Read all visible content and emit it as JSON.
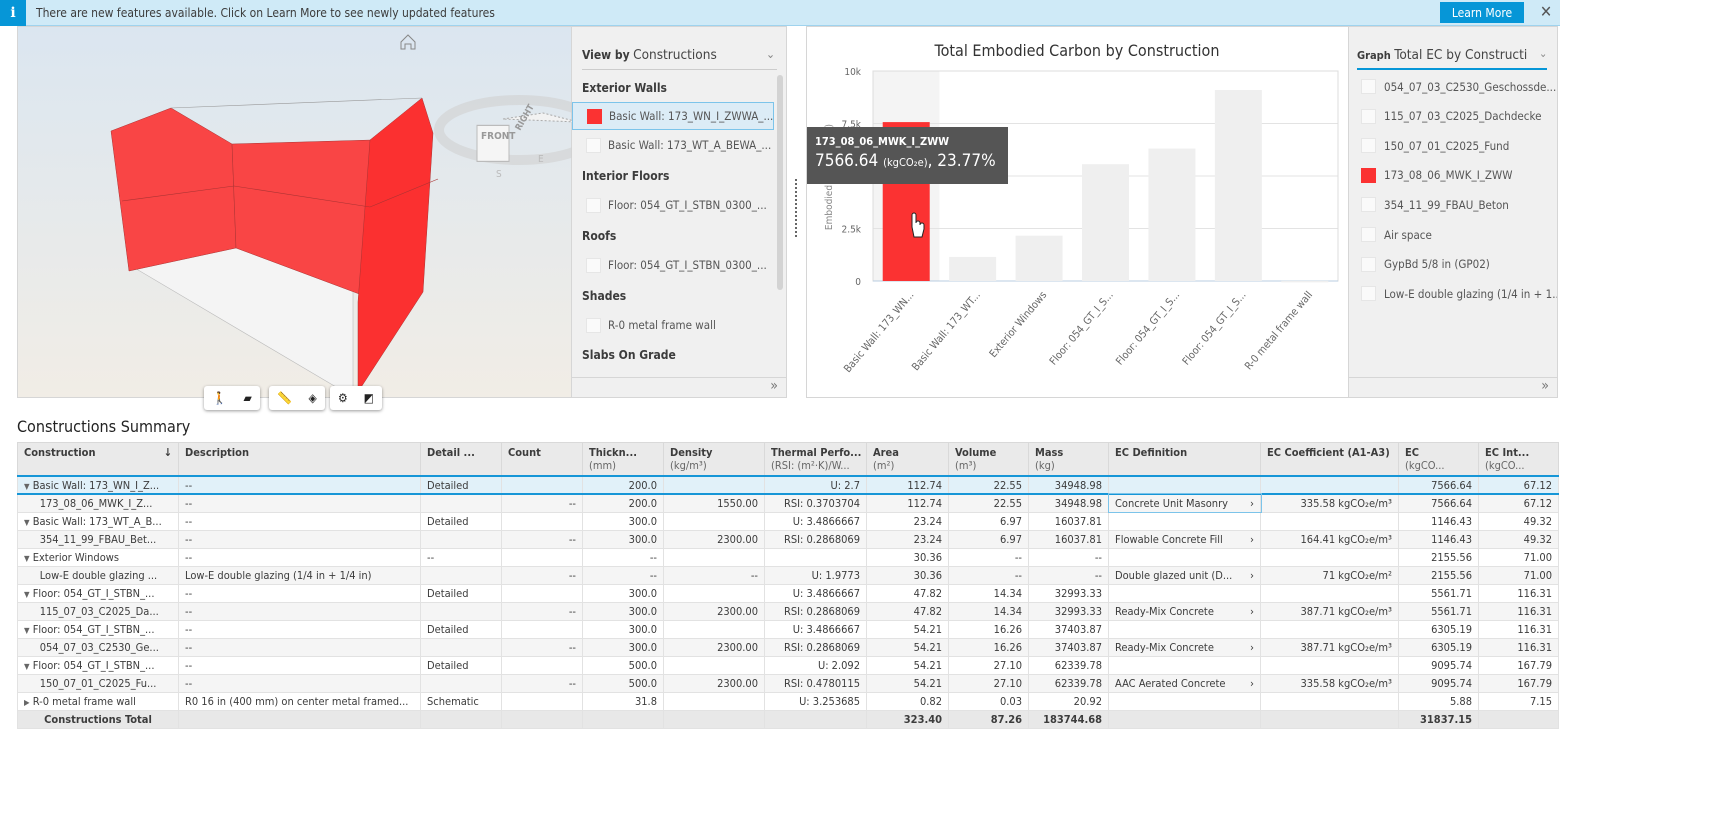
{
  "banner": {
    "text": "There are new features available. Click on Learn More to see newly updated features",
    "button": "Learn More"
  },
  "viewer": {
    "viewcube_front": "FRONT",
    "viewcube_right": "RIGHT",
    "compass_s": "S",
    "compass_e": "E"
  },
  "sidelist": {
    "view_by_label": "View by",
    "view_by_value": "Constructions",
    "groups": [
      {
        "title": "Exterior Walls",
        "items": [
          {
            "label": "Basic Wall: 173_WN_I_ZWWA_...",
            "selected": true,
            "color": "#fb3232"
          },
          {
            "label": "Basic Wall: 173_WT_A_BEWA_..."
          }
        ]
      },
      {
        "title": "Interior Floors",
        "items": [
          {
            "label": "Floor: 054_GT_I_STBN_0300_..."
          }
        ]
      },
      {
        "title": "Roofs",
        "items": [
          {
            "label": "Floor: 054_GT_I_STBN_0300_..."
          }
        ]
      },
      {
        "title": "Shades",
        "items": [
          {
            "label": "R-0 metal frame wall"
          }
        ]
      },
      {
        "title": "Slabs On Grade",
        "items": []
      }
    ],
    "expand": "»"
  },
  "chart_panel": {
    "graph_label": "Graph",
    "graph_value": "Total EC by Constructi",
    "expand": "»",
    "legend": [
      {
        "label": "054_07_03_C2530_Geschossde..."
      },
      {
        "label": "115_07_03_C2025_Dachdecke"
      },
      {
        "label": "150_07_01_C2025_Fund"
      },
      {
        "label": "173_08_06_MWK_I_ZWW",
        "color": "#fb3232"
      },
      {
        "label": "354_11_99_FBAU_Beton"
      },
      {
        "label": "Air space"
      },
      {
        "label": "GypBd 5/8 in (GP02)"
      },
      {
        "label": "Low-E double glazing (1/4 in + 1..."
      }
    ],
    "tooltip": {
      "title": "173_08_06_MWK_I_ZWW",
      "value": "7566.64",
      "unit": "(kgCO₂e)",
      "percent": ", 23.77%"
    }
  },
  "chart_data": {
    "type": "bar",
    "title": "Total Embodied Carbon by Construction",
    "ylabel": "Embodied C... (kgCO₂e)",
    "ylim": [
      0,
      10000
    ],
    "yticks": [
      "0",
      "2.5k",
      "5k",
      "7.5k",
      "10k"
    ],
    "categories": [
      "Basic Wall: 173_WN...",
      "Basic Wall: 173_WT...",
      "Exterior Windows",
      "Floor: 054_GT_I_S...",
      "Floor: 054_GT_I_S...",
      "Floor: 054_GT_I_S...",
      "R-0 metal frame wall"
    ],
    "values": [
      7566.64,
      1146.43,
      2155.56,
      5561.71,
      6305.19,
      9095.74,
      5.88
    ],
    "highlight_color": "#fb3232",
    "bar_color": "#efefef",
    "highlighted_index": 0,
    "grid": true
  },
  "summary": {
    "title": "Constructions Summary",
    "headers": [
      {
        "l": "Construction"
      },
      {
        "l": "Description"
      },
      {
        "l": "Detail ..."
      },
      {
        "l": "Count"
      },
      {
        "l": "Thickn...",
        "u": "(mm)"
      },
      {
        "l": "Density",
        "u": "(kg/m³)"
      },
      {
        "l": "Thermal Perfo...",
        "u": "(RSI: (m²·K)/W..."
      },
      {
        "l": "Area",
        "u": "(m²)"
      },
      {
        "l": "Volume",
        "u": "(m³)"
      },
      {
        "l": "Mass",
        "u": "(kg)"
      },
      {
        "l": "EC Definition"
      },
      {
        "l": "EC Coefficient (A1-A3)"
      },
      {
        "l": "EC",
        "u": "(kgCO..."
      },
      {
        "l": "EC Int...",
        "u": "(kgCO..."
      }
    ],
    "rows": [
      {
        "lvl": 0,
        "c": [
          "Basic Wall: 173_WN_I_Z...",
          "--",
          "Detailed",
          "",
          "200.0",
          "",
          "U: 2.7",
          "112.74",
          "22.55",
          "34948.98",
          "",
          "",
          "7566.64",
          "67.12"
        ]
      },
      {
        "lvl": 1,
        "c": [
          "173_08_06_MWK_I_Z...",
          "--",
          "",
          "--",
          "200.0",
          "1550.00",
          "RSI: 0.3703704",
          "112.74",
          "22.55",
          "34948.98",
          "Concrete Unit Masonry",
          "335.58 kgCO₂e/m³",
          "7566.64",
          "67.12"
        ]
      },
      {
        "lvl": 0,
        "c": [
          "Basic Wall: 173_WT_A_B...",
          "--",
          "Detailed",
          "",
          "300.0",
          "",
          "U: 3.4866667",
          "23.24",
          "6.97",
          "16037.81",
          "",
          "",
          "1146.43",
          "49.32"
        ]
      },
      {
        "lvl": 1,
        "c": [
          "354_11_99_FBAU_Bet...",
          "--",
          "",
          "--",
          "300.0",
          "2300.00",
          "RSI: 0.2868069",
          "23.24",
          "6.97",
          "16037.81",
          "Flowable Concrete Fill",
          "164.41 kgCO₂e/m³",
          "1146.43",
          "49.32"
        ]
      },
      {
        "lvl": 0,
        "c": [
          "Exterior Windows",
          "--",
          "--",
          "",
          "--",
          "",
          "",
          "30.36",
          "--",
          "--",
          "",
          "",
          "2155.56",
          "71.00"
        ]
      },
      {
        "lvl": 1,
        "c": [
          "Low-E double glazing ...",
          "Low-E double glazing (1/4 in + 1/4 in)",
          "",
          "--",
          "--",
          "--",
          "U: 1.9773",
          "30.36",
          "--",
          "--",
          "Double glazed unit (D...",
          "71 kgCO₂e/m²",
          "2155.56",
          "71.00"
        ]
      },
      {
        "lvl": 0,
        "c": [
          "Floor: 054_GT_I_STBN_...",
          "--",
          "Detailed",
          "",
          "300.0",
          "",
          "U: 3.4866667",
          "47.82",
          "14.34",
          "32993.33",
          "",
          "",
          "5561.71",
          "116.31"
        ]
      },
      {
        "lvl": 1,
        "c": [
          "115_07_03_C2025_Da...",
          "--",
          "",
          "--",
          "300.0",
          "2300.00",
          "RSI: 0.2868069",
          "47.82",
          "14.34",
          "32993.33",
          "Ready-Mix Concrete",
          "387.71 kgCO₂e/m³",
          "5561.71",
          "116.31"
        ]
      },
      {
        "lvl": 0,
        "c": [
          "Floor: 054_GT_I_STBN_...",
          "--",
          "Detailed",
          "",
          "300.0",
          "",
          "U: 3.4866667",
          "54.21",
          "16.26",
          "37403.87",
          "",
          "",
          "6305.19",
          "116.31"
        ]
      },
      {
        "lvl": 1,
        "c": [
          "054_07_03_C2530_Ge...",
          "--",
          "",
          "--",
          "300.0",
          "2300.00",
          "RSI: 0.2868069",
          "54.21",
          "16.26",
          "37403.87",
          "Ready-Mix Concrete",
          "387.71 kgCO₂e/m³",
          "6305.19",
          "116.31"
        ]
      },
      {
        "lvl": 0,
        "c": [
          "Floor: 054_GT_I_STBN_...",
          "--",
          "Detailed",
          "",
          "500.0",
          "",
          "U: 2.092",
          "54.21",
          "27.10",
          "62339.78",
          "",
          "",
          "9095.74",
          "167.79"
        ]
      },
      {
        "lvl": 1,
        "c": [
          "150_07_01_C2025_Fu...",
          "--",
          "",
          "--",
          "500.0",
          "2300.00",
          "RSI: 0.4780115",
          "54.21",
          "27.10",
          "62339.78",
          "AAC Aerated Concrete",
          "335.58 kgCO₂e/m³",
          "9095.74",
          "167.79"
        ]
      },
      {
        "lvl": 2,
        "c": [
          "R-0 metal frame wall",
          "R0 16 in (400 mm) on center metal framed...",
          "Schematic",
          "",
          "31.8",
          "",
          "U: 3.253685",
          "0.82",
          "0.03",
          "20.92",
          "",
          "",
          "5.88",
          "7.15"
        ]
      }
    ],
    "total": {
      "label": "Constructions Total",
      "area": "323.40",
      "volume": "87.26",
      "mass": "183744.68",
      "ec": "31837.15"
    }
  }
}
